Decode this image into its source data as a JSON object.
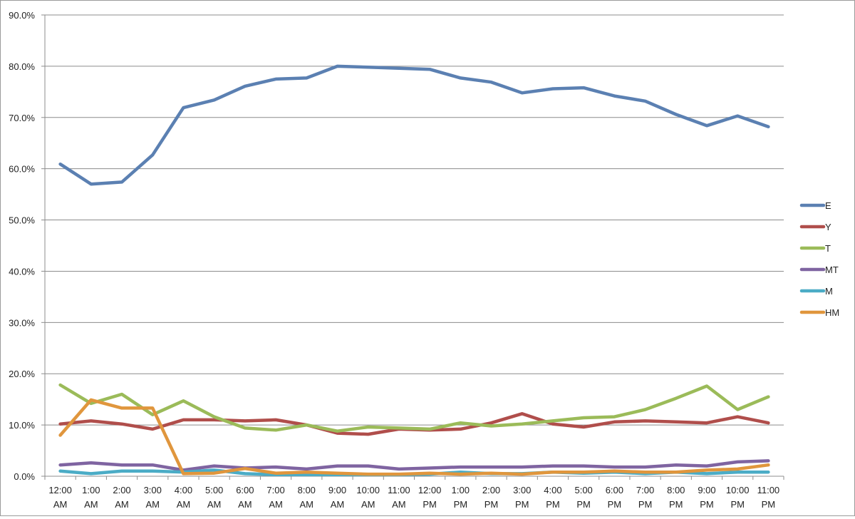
{
  "chart_data": {
    "type": "line",
    "title": "",
    "xlabel": "",
    "ylabel": "",
    "ylim": [
      0,
      90
    ],
    "yticks": [
      0,
      10,
      20,
      30,
      40,
      50,
      60,
      70,
      80,
      90
    ],
    "ytick_labels": [
      "0.0%",
      "10.0%",
      "20.0%",
      "30.0%",
      "40.0%",
      "50.0%",
      "60.0%",
      "70.0%",
      "80.0%",
      "90.0%"
    ],
    "grid": true,
    "legend_position": "right",
    "categories": [
      [
        "12:00",
        "AM"
      ],
      [
        "1:00",
        "AM"
      ],
      [
        "2:00",
        "AM"
      ],
      [
        "3:00",
        "AM"
      ],
      [
        "4:00",
        "AM"
      ],
      [
        "5:00",
        "AM"
      ],
      [
        "6:00",
        "AM"
      ],
      [
        "7:00",
        "AM"
      ],
      [
        "8:00",
        "AM"
      ],
      [
        "9:00",
        "AM"
      ],
      [
        "10:00",
        "AM"
      ],
      [
        "11:00",
        "AM"
      ],
      [
        "12:00",
        "PM"
      ],
      [
        "1:00",
        "PM"
      ],
      [
        "2:00",
        "PM"
      ],
      [
        "3:00",
        "PM"
      ],
      [
        "4:00",
        "PM"
      ],
      [
        "5:00",
        "PM"
      ],
      [
        "6:00",
        "PM"
      ],
      [
        "7:00",
        "PM"
      ],
      [
        "8:00",
        "PM"
      ],
      [
        "9:00",
        "PM"
      ],
      [
        "10:00",
        "PM"
      ],
      [
        "11:00",
        "PM"
      ]
    ],
    "series": [
      {
        "name": "E",
        "color": "#5b80b2",
        "values": [
          60.9,
          57.0,
          57.4,
          62.7,
          71.9,
          73.4,
          76.1,
          77.5,
          77.7,
          80.0,
          79.8,
          79.6,
          79.4,
          77.7,
          76.9,
          74.8,
          75.6,
          75.8,
          74.2,
          73.2,
          70.6,
          68.4,
          70.3,
          68.2
        ]
      },
      {
        "name": "Y",
        "color": "#b04e4b",
        "values": [
          10.2,
          10.8,
          10.2,
          9.2,
          11.0,
          11.0,
          10.8,
          11.0,
          10.0,
          8.4,
          8.2,
          9.2,
          9.0,
          9.2,
          10.4,
          12.2,
          10.2,
          9.6,
          10.6,
          10.8,
          10.6,
          10.4,
          11.6,
          10.4
        ]
      },
      {
        "name": "T",
        "color": "#9bbb59",
        "values": [
          17.8,
          14.2,
          16.0,
          12.0,
          14.7,
          11.6,
          9.4,
          9.0,
          10.0,
          8.8,
          9.6,
          9.4,
          9.2,
          10.4,
          9.8,
          10.2,
          10.8,
          11.4,
          11.6,
          13.0,
          15.2,
          17.6,
          13.0,
          15.5
        ]
      },
      {
        "name": "MT",
        "color": "#7f64a1",
        "values": [
          2.2,
          2.6,
          2.2,
          2.2,
          1.2,
          2.0,
          1.6,
          1.8,
          1.4,
          2.0,
          2.0,
          1.4,
          1.6,
          1.8,
          1.8,
          1.8,
          2.0,
          2.0,
          1.8,
          1.8,
          2.2,
          2.0,
          2.8,
          3.0
        ]
      },
      {
        "name": "M",
        "color": "#4bacc6",
        "values": [
          1.0,
          0.5,
          1.0,
          1.0,
          0.8,
          1.2,
          0.5,
          0.3,
          0.3,
          0.3,
          0.3,
          0.3,
          0.4,
          0.8,
          0.5,
          0.5,
          0.8,
          0.6,
          0.8,
          0.5,
          0.8,
          0.5,
          0.8,
          0.8
        ]
      },
      {
        "name": "HM",
        "color": "#e0963d",
        "values": [
          8.0,
          14.9,
          13.3,
          13.3,
          0.5,
          0.6,
          1.5,
          0.6,
          0.8,
          0.6,
          0.4,
          0.4,
          0.6,
          0.4,
          0.6,
          0.4,
          0.8,
          0.8,
          1.0,
          0.8,
          0.8,
          1.2,
          1.4,
          2.2
        ]
      }
    ]
  }
}
